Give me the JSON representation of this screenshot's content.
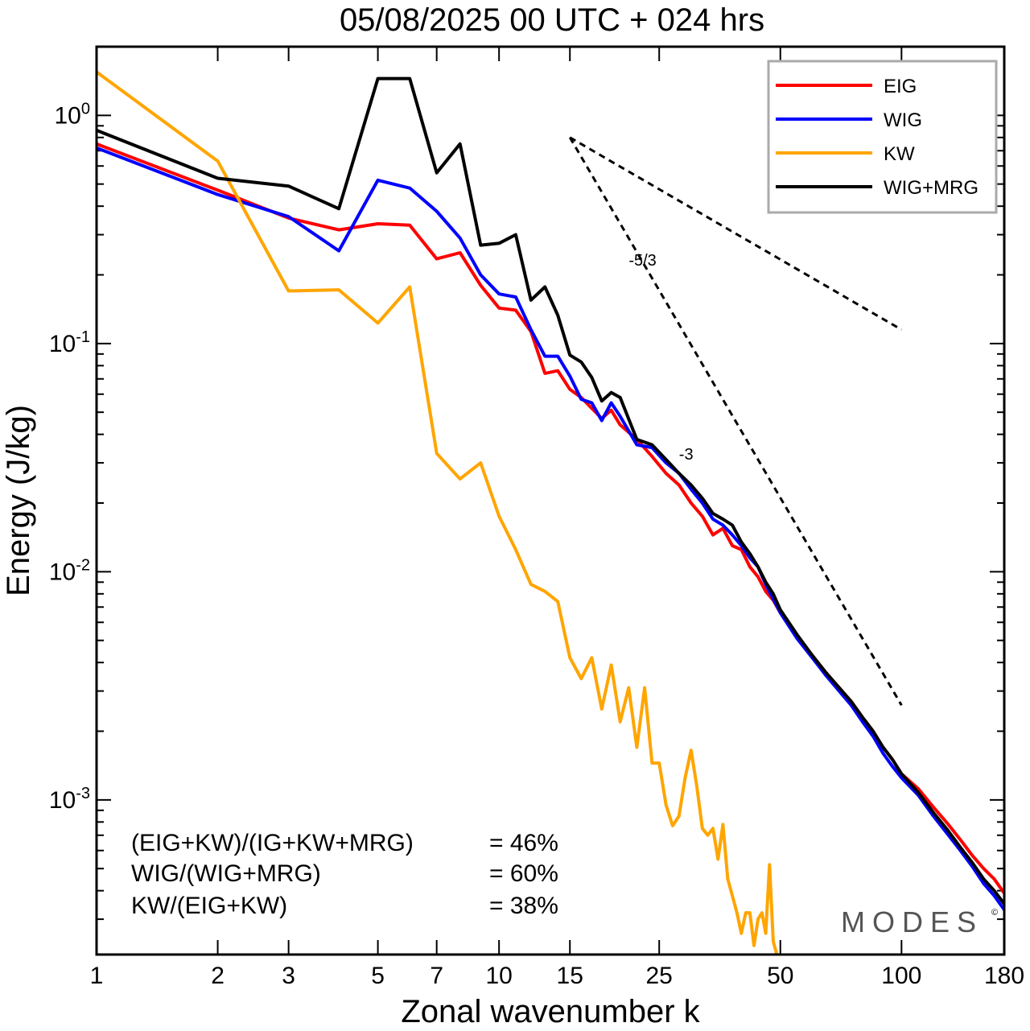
{
  "chart_data": {
    "type": "line",
    "title": "05/08/2025  00 UTC  + 024 hrs",
    "xlabel": "Zonal wavenumber k",
    "ylabel": "Energy (J/kg)",
    "xscale": "log",
    "yscale": "log",
    "xlim": [
      1,
      180
    ],
    "ylim": [
      0.00021,
      2.0
    ],
    "xticks": [
      1,
      2,
      3,
      5,
      7,
      10,
      15,
      25,
      50,
      100,
      180
    ],
    "xtick_labels": [
      "1",
      "2",
      "3",
      "5",
      "7",
      "10",
      "15",
      "25",
      "50",
      "100",
      "180"
    ],
    "yticks": [
      {
        "value": 1,
        "base": "10",
        "exp": "0"
      },
      {
        "value": 0.1,
        "base": "10",
        "exp": "-1"
      },
      {
        "value": 0.01,
        "base": "10",
        "exp": "-2"
      },
      {
        "value": 0.001,
        "base": "10",
        "exp": "-3"
      }
    ],
    "legend_position": "top-right",
    "series": [
      {
        "name": "EIG",
        "color": "#ff0000",
        "points": [
          [
            1,
            0.75
          ],
          [
            2,
            0.47
          ],
          [
            3,
            0.355
          ],
          [
            4,
            0.315
          ],
          [
            5,
            0.335
          ],
          [
            6,
            0.33
          ],
          [
            7,
            0.235
          ],
          [
            8,
            0.25
          ],
          [
            9,
            0.18
          ],
          [
            10,
            0.143
          ],
          [
            11,
            0.14
          ],
          [
            12,
            0.113
          ],
          [
            13,
            0.074
          ],
          [
            14,
            0.076
          ],
          [
            15,
            0.063
          ],
          [
            16,
            0.058
          ],
          [
            17,
            0.052
          ],
          [
            18,
            0.047
          ],
          [
            19,
            0.051
          ],
          [
            20,
            0.044
          ],
          [
            22,
            0.038
          ],
          [
            24,
            0.032
          ],
          [
            26,
            0.027
          ],
          [
            28,
            0.024
          ],
          [
            30,
            0.02
          ],
          [
            32,
            0.0175
          ],
          [
            34,
            0.0145
          ],
          [
            36,
            0.0155
          ],
          [
            38,
            0.013
          ],
          [
            40,
            0.0125
          ],
          [
            42,
            0.0105
          ],
          [
            44,
            0.0095
          ],
          [
            46,
            0.0082
          ],
          [
            48,
            0.0075
          ],
          [
            50,
            0.0066
          ],
          [
            55,
            0.0052
          ],
          [
            60,
            0.0043
          ],
          [
            65,
            0.0036
          ],
          [
            70,
            0.0031
          ],
          [
            75,
            0.0027
          ],
          [
            80,
            0.0023
          ],
          [
            85,
            0.002
          ],
          [
            90,
            0.0017
          ],
          [
            95,
            0.0015
          ],
          [
            100,
            0.0013
          ],
          [
            110,
            0.00112
          ],
          [
            120,
            0.00093
          ],
          [
            130,
            0.00079
          ],
          [
            140,
            0.00067
          ],
          [
            150,
            0.00057
          ],
          [
            160,
            0.0005
          ],
          [
            170,
            0.00045
          ],
          [
            180,
            0.00039
          ]
        ]
      },
      {
        "name": "WIG",
        "color": "#0000ff",
        "points": [
          [
            1,
            0.72
          ],
          [
            2,
            0.45
          ],
          [
            3,
            0.36
          ],
          [
            4,
            0.255
          ],
          [
            5,
            0.52
          ],
          [
            6,
            0.48
          ],
          [
            7,
            0.38
          ],
          [
            8,
            0.29
          ],
          [
            9,
            0.2
          ],
          [
            10,
            0.165
          ],
          [
            11,
            0.16
          ],
          [
            12,
            0.115
          ],
          [
            13,
            0.088
          ],
          [
            14,
            0.088
          ],
          [
            15,
            0.072
          ],
          [
            16,
            0.057
          ],
          [
            17,
            0.055
          ],
          [
            18,
            0.046
          ],
          [
            19,
            0.055
          ],
          [
            20,
            0.048
          ],
          [
            22,
            0.036
          ],
          [
            24,
            0.035
          ],
          [
            26,
            0.03
          ],
          [
            28,
            0.027
          ],
          [
            30,
            0.023
          ],
          [
            32,
            0.02
          ],
          [
            34,
            0.017
          ],
          [
            36,
            0.016
          ],
          [
            38,
            0.0145
          ],
          [
            40,
            0.013
          ],
          [
            42,
            0.0115
          ],
          [
            44,
            0.0105
          ],
          [
            46,
            0.0088
          ],
          [
            48,
            0.0076
          ],
          [
            50,
            0.0066
          ],
          [
            55,
            0.0051
          ],
          [
            60,
            0.0042
          ],
          [
            65,
            0.0035
          ],
          [
            70,
            0.003
          ],
          [
            75,
            0.0026
          ],
          [
            80,
            0.0022
          ],
          [
            85,
            0.0019
          ],
          [
            90,
            0.0016
          ],
          [
            95,
            0.0014
          ],
          [
            100,
            0.00125
          ],
          [
            110,
            0.00105
          ],
          [
            120,
            0.00085
          ],
          [
            130,
            0.00071
          ],
          [
            140,
            0.0006
          ],
          [
            150,
            0.00051
          ],
          [
            160,
            0.00043
          ],
          [
            170,
            0.00038
          ],
          [
            180,
            0.00033
          ]
        ]
      },
      {
        "name": "KW",
        "color": "#ffa500",
        "points": [
          [
            1,
            1.55
          ],
          [
            2,
            0.63
          ],
          [
            3,
            0.17
          ],
          [
            4,
            0.172
          ],
          [
            5,
            0.123
          ],
          [
            6,
            0.177
          ],
          [
            7,
            0.033
          ],
          [
            8,
            0.0255
          ],
          [
            9,
            0.03
          ],
          [
            10,
            0.0175
          ],
          [
            11,
            0.0125
          ],
          [
            12,
            0.0088
          ],
          [
            13,
            0.0082
          ],
          [
            14,
            0.0074
          ],
          [
            15,
            0.0042
          ],
          [
            16,
            0.0034
          ],
          [
            17,
            0.0042
          ],
          [
            18,
            0.0025
          ],
          [
            19,
            0.0039
          ],
          [
            20,
            0.0022
          ],
          [
            21,
            0.0031
          ],
          [
            22,
            0.0017
          ],
          [
            23,
            0.0031
          ],
          [
            24,
            0.00145
          ],
          [
            25,
            0.00145
          ],
          [
            26,
            0.00095
          ],
          [
            27,
            0.00077
          ],
          [
            28,
            0.00085
          ],
          [
            29,
            0.00125
          ],
          [
            30,
            0.00165
          ],
          [
            31,
            0.00115
          ],
          [
            32,
            0.00075
          ],
          [
            33,
            0.0007
          ],
          [
            34,
            0.00075
          ],
          [
            35,
            0.00055
          ],
          [
            36,
            0.00078
          ],
          [
            37,
            0.00045
          ],
          [
            38,
            0.00038
          ],
          [
            39,
            0.00032
          ],
          [
            40,
            0.00026
          ],
          [
            41,
            0.00032
          ],
          [
            42,
            0.00032
          ],
          [
            43,
            0.00023
          ],
          [
            44,
            0.0003
          ],
          [
            45,
            0.00032
          ],
          [
            46,
            0.00026
          ],
          [
            47,
            0.00052
          ],
          [
            48,
            0.00024
          ],
          [
            49,
            0.00021
          ]
        ]
      },
      {
        "name": "WIG+MRG",
        "color": "#000000",
        "points": [
          [
            1,
            0.86
          ],
          [
            2,
            0.53
          ],
          [
            3,
            0.49
          ],
          [
            4,
            0.39
          ],
          [
            5,
            1.45
          ],
          [
            6,
            1.45
          ],
          [
            7,
            0.56
          ],
          [
            8,
            0.75
          ],
          [
            9,
            0.27
          ],
          [
            10,
            0.275
          ],
          [
            11,
            0.3
          ],
          [
            12,
            0.155
          ],
          [
            13,
            0.177
          ],
          [
            14,
            0.133
          ],
          [
            15,
            0.089
          ],
          [
            16,
            0.083
          ],
          [
            17,
            0.071
          ],
          [
            18,
            0.056
          ],
          [
            19,
            0.061
          ],
          [
            20,
            0.058
          ],
          [
            22,
            0.038
          ],
          [
            24,
            0.036
          ],
          [
            26,
            0.031
          ],
          [
            28,
            0.027
          ],
          [
            30,
            0.024
          ],
          [
            32,
            0.021
          ],
          [
            34,
            0.018
          ],
          [
            36,
            0.017
          ],
          [
            38,
            0.016
          ],
          [
            40,
            0.0135
          ],
          [
            42,
            0.012
          ],
          [
            44,
            0.0105
          ],
          [
            46,
            0.009
          ],
          [
            48,
            0.008
          ],
          [
            50,
            0.0068
          ],
          [
            55,
            0.0053
          ],
          [
            60,
            0.0043
          ],
          [
            65,
            0.0036
          ],
          [
            70,
            0.0031
          ],
          [
            75,
            0.0027
          ],
          [
            80,
            0.0023
          ],
          [
            85,
            0.002
          ],
          [
            90,
            0.0017
          ],
          [
            95,
            0.0015
          ],
          [
            100,
            0.0013
          ],
          [
            110,
            0.00108
          ],
          [
            120,
            0.00088
          ],
          [
            130,
            0.00074
          ],
          [
            140,
            0.00062
          ],
          [
            150,
            0.00053
          ],
          [
            160,
            0.00045
          ],
          [
            170,
            0.0004
          ],
          [
            180,
            0.00035
          ]
        ]
      }
    ],
    "reference_lines": [
      {
        "label": "-5/3",
        "slope": -1.6667,
        "from": [
          15,
          0.8
        ],
        "to": [
          100,
          0.115
        ],
        "label_at": [
          21,
          0.22
        ]
      },
      {
        "label": "-3",
        "slope": -3,
        "from": [
          15,
          0.8
        ],
        "to": [
          100,
          0.0026
        ],
        "label_at": [
          28,
          0.031
        ]
      }
    ],
    "annotations": [
      {
        "left": "(EIG+KW)/(IG+KW+MRG)",
        "right": "= 46%"
      },
      {
        "left": "WIG/(WIG+MRG)",
        "right": "= 60%"
      },
      {
        "left": "KW/(EIG+KW)",
        "right": "= 38%"
      }
    ],
    "watermark": "MODES",
    "watermark_mark": "©"
  }
}
